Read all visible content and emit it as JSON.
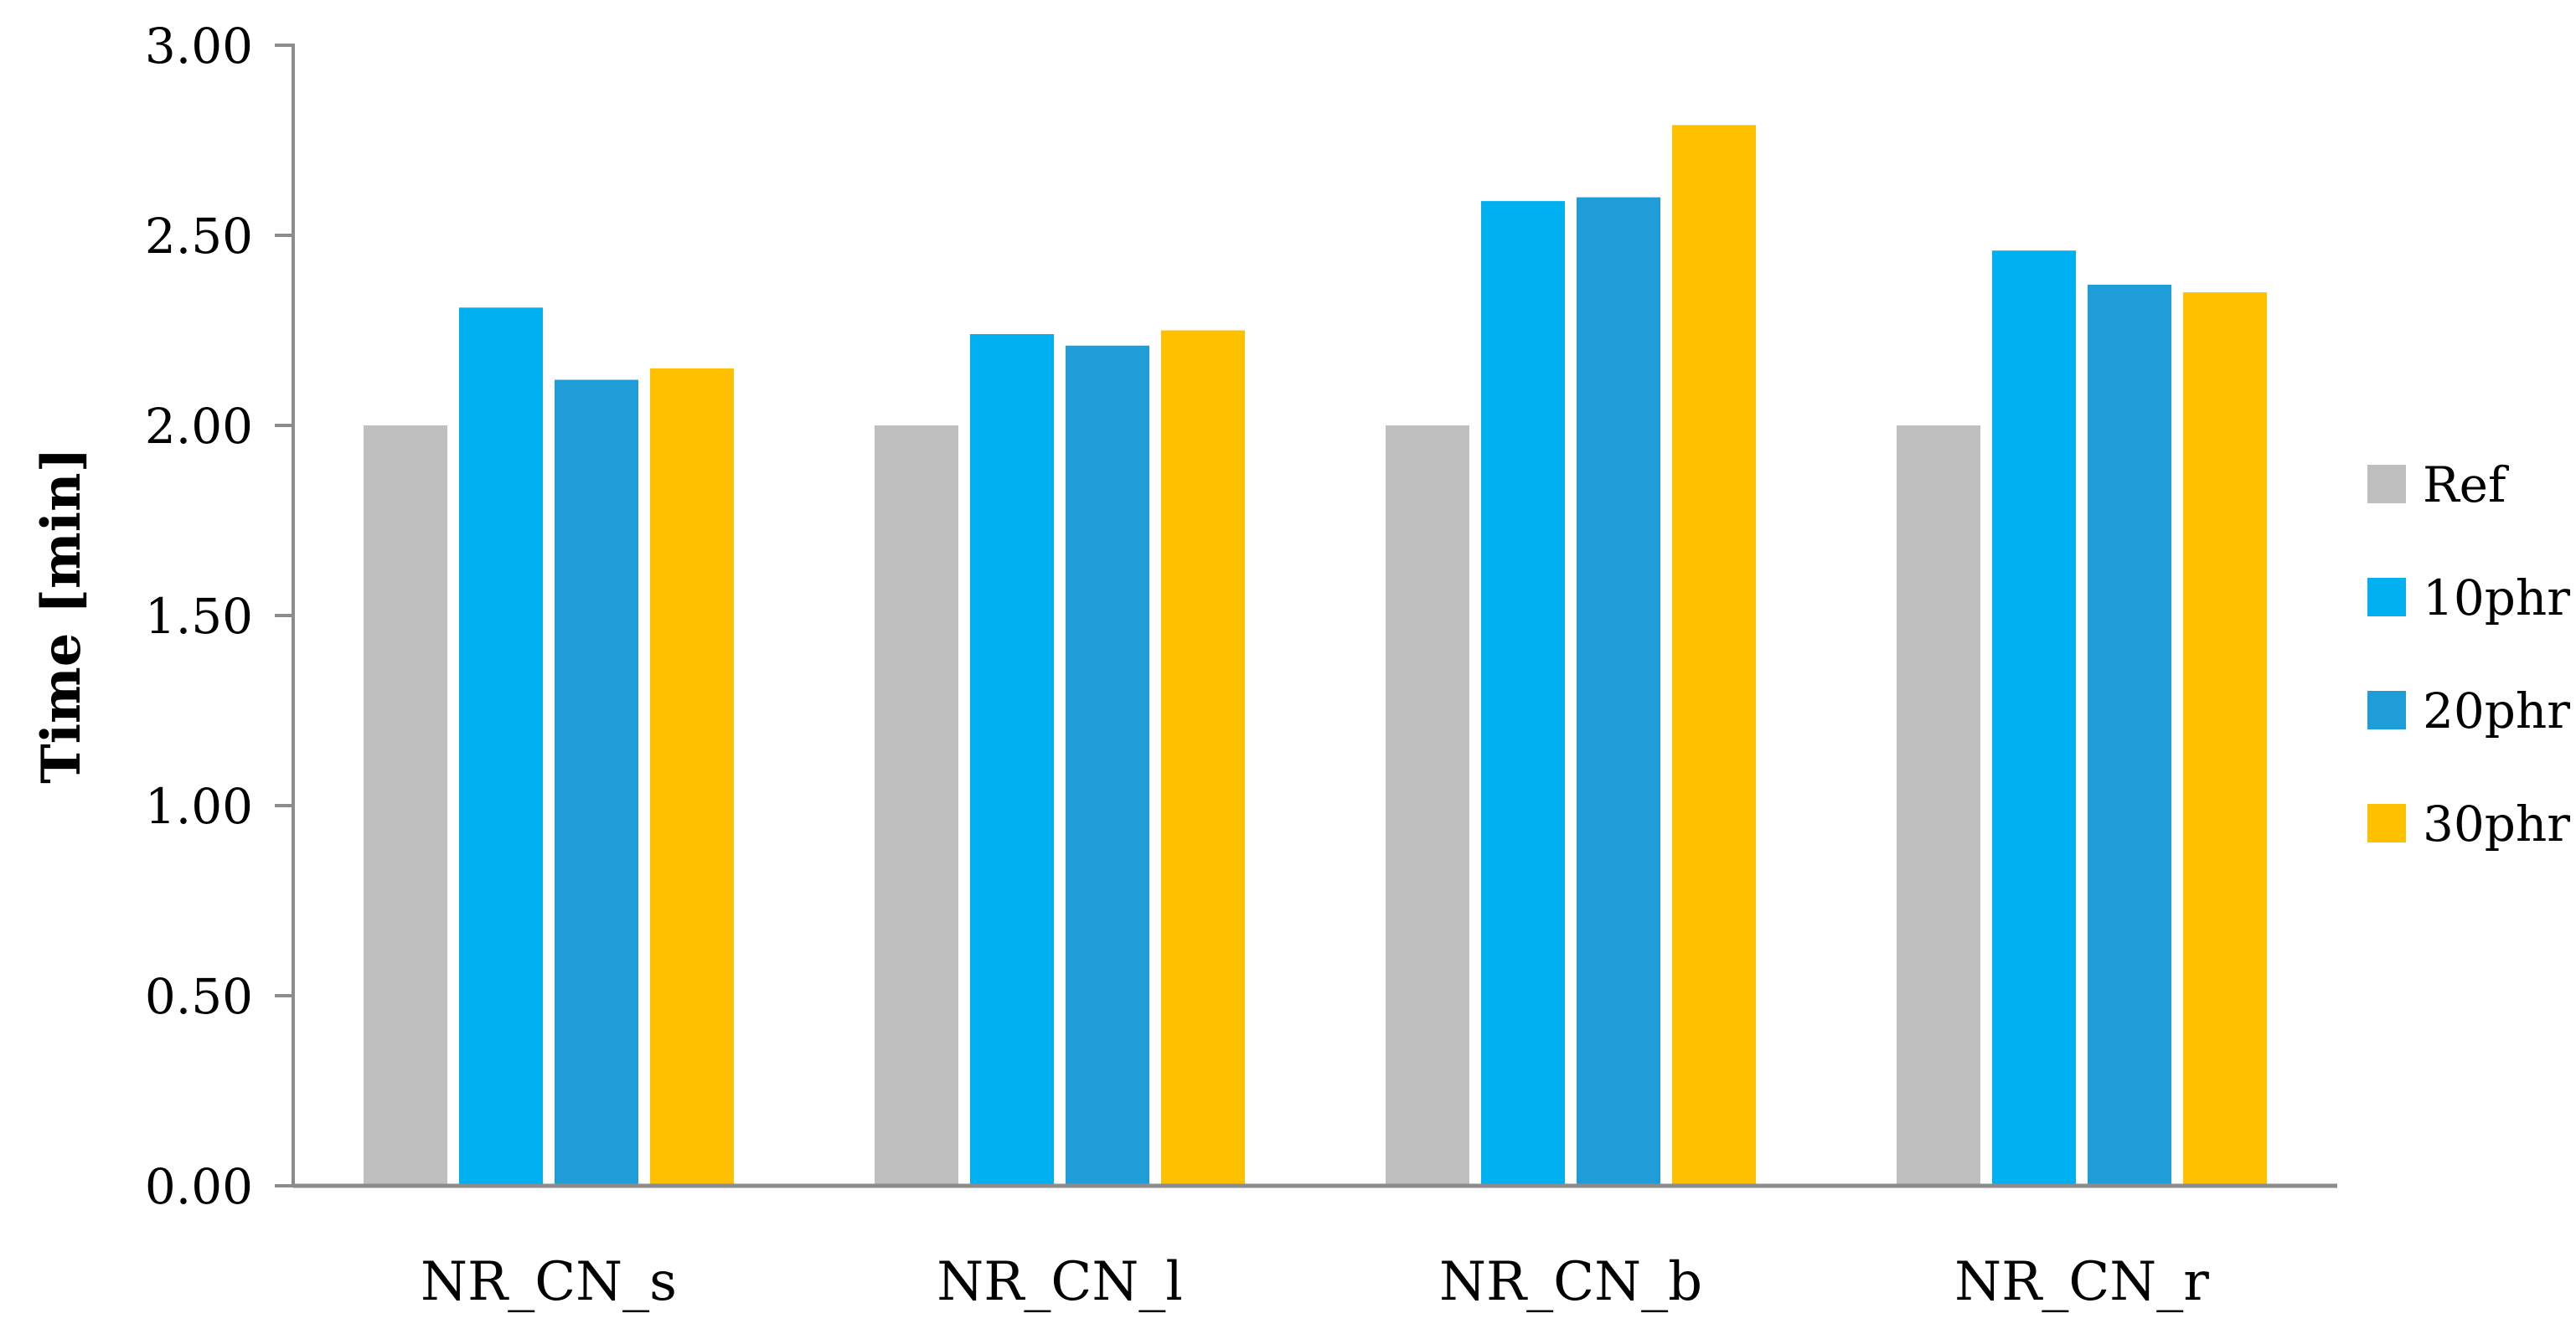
{
  "figure": {
    "y_axis_title": "Time [min]"
  },
  "chart_data": {
    "type": "bar",
    "title": "",
    "xlabel": "",
    "ylabel": "Time [min]",
    "categories": [
      "NR_CN_s",
      "NR_CN_l",
      "NR_CN_b",
      "NR_CN_r"
    ],
    "series": [
      {
        "name": "Ref",
        "color": "#BFBFBF",
        "values": [
          2.0,
          2.0,
          2.0,
          2.0
        ]
      },
      {
        "name": "10phr",
        "color": "#00B0F0",
        "values": [
          2.31,
          2.24,
          2.59,
          2.46
        ]
      },
      {
        "name": "20phr",
        "color": "#1F9DD8",
        "values": [
          2.12,
          2.21,
          2.6,
          2.37
        ]
      },
      {
        "name": "30phr",
        "color": "#FFC000",
        "values": [
          2.15,
          2.25,
          2.79,
          2.35
        ]
      }
    ],
    "ylim": [
      0,
      3
    ],
    "ytick_step": 0.5,
    "ytick_labels": [
      "0.00",
      "0.50",
      "1.00",
      "1.50",
      "2.00",
      "2.50",
      "3.00"
    ],
    "grid": false,
    "legend_position": "right",
    "axis_color": "#8C8C8C",
    "text_color": "#000000",
    "background_color": "#FFFFFF"
  }
}
